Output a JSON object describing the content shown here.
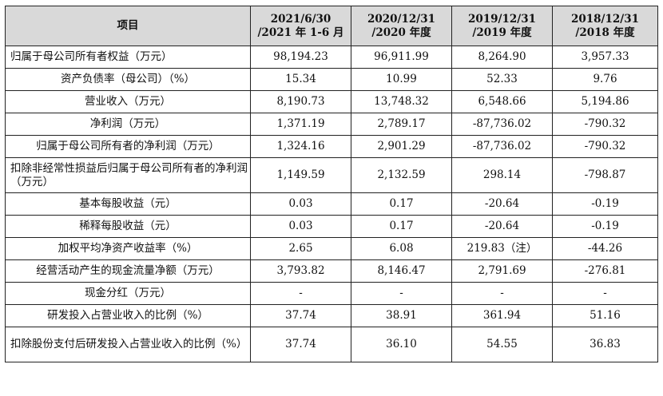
{
  "table": {
    "headers": {
      "item": "项目",
      "cols": [
        {
          "line1": "2021/6/30",
          "line2": "/2021 年 1-6 月"
        },
        {
          "line1": "2020/12/31",
          "line2": "/2020 年度"
        },
        {
          "line1": "2019/12/31",
          "line2": "/2019 年度"
        },
        {
          "line1": "2018/12/31",
          "line2": "/2018 年度"
        }
      ]
    },
    "rows": [
      {
        "label": "归属于母公司所有者权益（万元）",
        "values": [
          "98,194.23",
          "96,911.99",
          "8,264.90",
          "3,957.33"
        ]
      },
      {
        "label": "资产负债率（母公司）（%）",
        "values": [
          "15.34",
          "10.99",
          "52.33",
          "9.76"
        ]
      },
      {
        "label": "营业收入（万元）",
        "values": [
          "8,190.73",
          "13,748.32",
          "6,548.66",
          "5,194.86"
        ]
      },
      {
        "label": "净利润（万元）",
        "values": [
          "1,371.19",
          "2,789.17",
          "-87,736.02",
          "-790.32"
        ]
      },
      {
        "label": "归属于母公司所有者的净利润（万元）",
        "values": [
          "1,324.16",
          "2,901.29",
          "-87,736.02",
          "-790.32"
        ]
      },
      {
        "label": "扣除非经常性损益后归属于母公司所有者的净利润（万元）",
        "values": [
          "1,149.59",
          "2,132.59",
          "298.14",
          "-798.87"
        ]
      },
      {
        "label": "基本每股收益（元）",
        "values": [
          "0.03",
          "0.17",
          "-20.64",
          "-0.19"
        ]
      },
      {
        "label": "稀释每股收益（元）",
        "values": [
          "0.03",
          "0.17",
          "-20.64",
          "-0.19"
        ]
      },
      {
        "label": "加权平均净资产收益率（%）",
        "values": [
          "2.65",
          "6.08",
          "219.83（注）",
          "-44.26"
        ]
      },
      {
        "label": "经营活动产生的现金流量净额（万元）",
        "values": [
          "3,793.82",
          "8,146.47",
          "2,791.69",
          "-276.81"
        ]
      },
      {
        "label": "现金分红（万元）",
        "values": [
          "-",
          "-",
          "-",
          "-"
        ]
      },
      {
        "label": "研发投入占营业收入的比例（%）",
        "values": [
          "37.74",
          "38.91",
          "361.94",
          "51.16"
        ]
      },
      {
        "label": "扣除股份支付后研发投入占营业收入的比例（%）",
        "values": [
          "37.74",
          "36.10",
          "54.55",
          "36.83"
        ]
      }
    ]
  }
}
